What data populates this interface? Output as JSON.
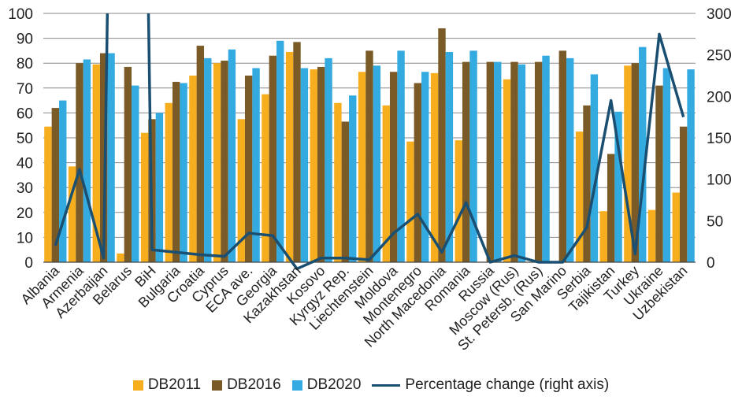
{
  "chart_data": {
    "type": "bar",
    "categories": [
      "Albania",
      "Armenia",
      "Azerbaijan",
      "Belarus",
      "BiH",
      "Bulgaria",
      "Croatia",
      "Cyprus",
      "ECA ave.",
      "Georgia",
      "Kazakhstan",
      "Kosovo",
      "Kyrgyz Rep.",
      "Liechtenstein",
      "Moldova",
      "Montenegro",
      "North Macedonia",
      "Romania",
      "Russia",
      "Moscow (Rus)",
      "St. Petersb. (Rus)",
      "San Marino",
      "Serbia",
      "Tajikistan",
      "Turkey",
      "Ukraine",
      "Uzbekistan"
    ],
    "series": [
      {
        "name": "DB2011",
        "color": "#f6ae1e",
        "values": [
          54.5,
          38.5,
          79.5,
          3.5,
          52,
          64,
          75,
          80,
          57.5,
          67.5,
          84.5,
          77.5,
          64,
          76.5,
          63,
          48.5,
          76,
          49,
          null,
          73.5,
          null,
          null,
          52.5,
          20.5,
          79,
          21,
          28
        ]
      },
      {
        "name": "DB2016",
        "color": "#7a5a27",
        "values": [
          62,
          80,
          84,
          78.5,
          57.5,
          72.5,
          87,
          81,
          75,
          83,
          88.5,
          78.5,
          56.5,
          85,
          76.5,
          72,
          94,
          80.5,
          80.5,
          80.5,
          80.5,
          85,
          63,
          43.5,
          80,
          71,
          54.5
        ]
      },
      {
        "name": "DB2020",
        "color": "#33abe1",
        "values": [
          65,
          81.5,
          84,
          71,
          60,
          72,
          82,
          85.5,
          78,
          89,
          78,
          82,
          67,
          79,
          85,
          76.5,
          84.5,
          85,
          80.5,
          79.5,
          83,
          82,
          75.5,
          60.5,
          86.5,
          78,
          77.5
        ]
      }
    ],
    "line_series": {
      "name": "Percentage change (right axis)",
      "color": "#1b4f72",
      "values": [
        20,
        112,
        5,
        1950,
        15,
        12,
        9,
        7,
        35,
        32,
        -8,
        5,
        5,
        3,
        35,
        58,
        12,
        72,
        0,
        8,
        0,
        0,
        42,
        195,
        10,
        275,
        175
      ]
    },
    "y_left": {
      "min": 0,
      "max": 100,
      "ticks": [
        0,
        10,
        20,
        30,
        40,
        50,
        60,
        70,
        80,
        90,
        100
      ]
    },
    "y_right": {
      "min": 0,
      "max": 300,
      "ticks": [
        0,
        50,
        100,
        150,
        200,
        250,
        300
      ]
    },
    "grid": true,
    "legend_position": "bottom"
  }
}
